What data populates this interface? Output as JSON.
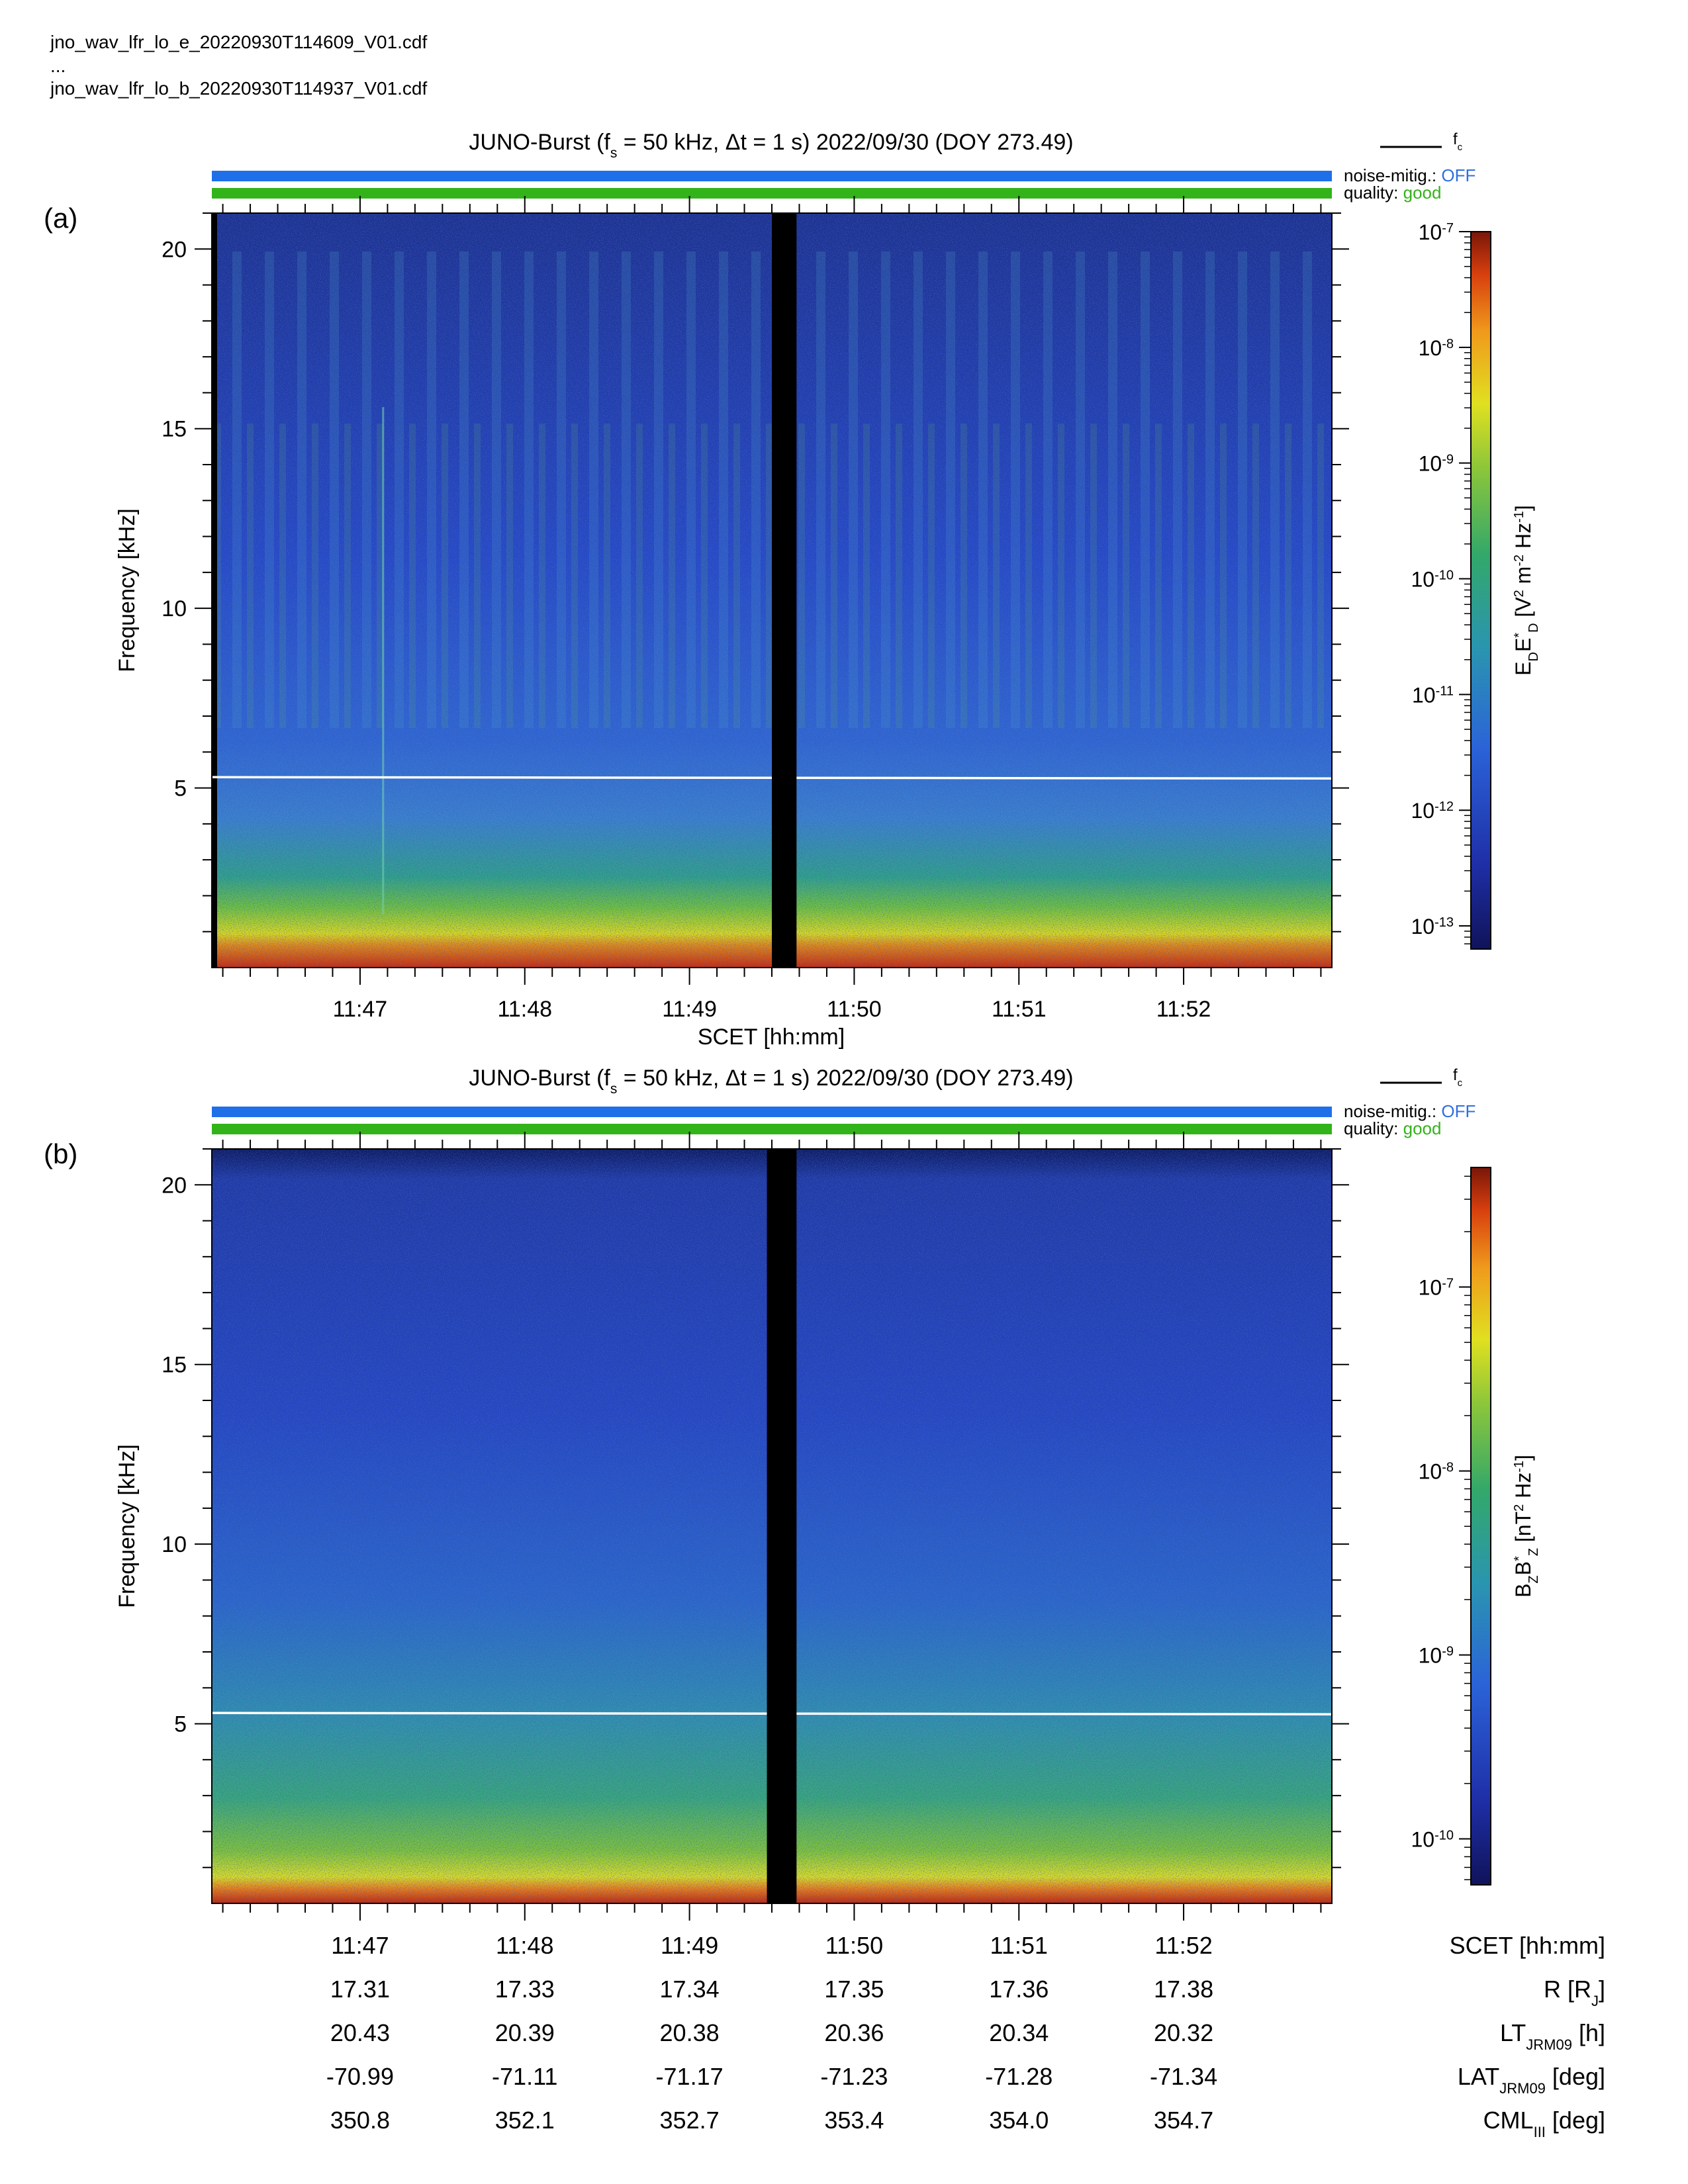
{
  "header": {
    "file_e": "jno_wav_lfr_lo_e_20220930T114609_V01.cdf",
    "ellipsis": "...",
    "file_b": "jno_wav_lfr_lo_b_20220930T114937_V01.cdf"
  },
  "colors": {
    "noise_bar": "#1f6fe8",
    "quality_bar": "#33b31a",
    "off_text": "#2f6fe0",
    "good_text": "#33b31a",
    "fc_line": "#ffffff",
    "gap": "#000000"
  },
  "chart_data": [
    {
      "type": "heatmap",
      "panel_label": "(a)",
      "title": {
        "prefix": "JUNO-Burst (f",
        "sub": "s",
        "middle": " = 50 kHz, Δt = 1 s)  2022/09/30 (DOY 273.49)"
      },
      "legend_fc": {
        "main": "f",
        "sub": "c"
      },
      "noise_mitig": {
        "label": "noise-mitig.:",
        "value": "OFF"
      },
      "quality": {
        "label": "quality:",
        "value": "good"
      },
      "ylabel": "Frequency [kHz]",
      "xlabel": "SCET [hh:mm]",
      "y_ticks": [
        "5",
        "10",
        "15",
        "20"
      ],
      "y_tick_values": [
        5,
        10,
        15,
        20
      ],
      "ylim": [
        0,
        21
      ],
      "x_ticks": [
        "11:47",
        "11:48",
        "11:49",
        "11:50",
        "11:51",
        "11:52"
      ],
      "x_tick_minutes": [
        47,
        48,
        49,
        50,
        51,
        52
      ],
      "xlim_minutes": [
        46.1,
        52.9
      ],
      "data_gap_minutes": [
        49.5,
        49.65
      ],
      "fc_line_khz": 5.3,
      "colorbar": {
        "label": {
          "a": "E",
          "a_sub": "D",
          "b": "E",
          "b_sup": "*",
          "b_sub": "D",
          "c": " [V",
          "c_sup": "2",
          "d": " m",
          "d_sup": "-2",
          "e": " Hz",
          "e_sup": "-1",
          "f": "]"
        },
        "tick_base": "10",
        "tick_exponents": [
          "-7",
          "-8",
          "-9",
          "-10",
          "-11",
          "-12",
          "-13"
        ],
        "tick_log_values": [
          -7,
          -8,
          -9,
          -10,
          -11,
          -12,
          -13
        ],
        "range_log": [
          -13.2,
          -7.0
        ]
      }
    },
    {
      "type": "heatmap",
      "panel_label": "(b)",
      "title": {
        "prefix": "JUNO-Burst (f",
        "sub": "s",
        "middle": " = 50 kHz, Δt = 1 s)  2022/09/30 (DOY 273.49)"
      },
      "legend_fc": {
        "main": "f",
        "sub": "c"
      },
      "noise_mitig": {
        "label": "noise-mitig.:",
        "value": "OFF"
      },
      "quality": {
        "label": "quality:",
        "value": "good"
      },
      "ylabel": "Frequency [kHz]",
      "y_ticks": [
        "5",
        "10",
        "15",
        "20"
      ],
      "y_tick_values": [
        5,
        10,
        15,
        20
      ],
      "ylim": [
        0,
        21
      ],
      "xlim_minutes": [
        46.1,
        52.9
      ],
      "data_gap_minutes": [
        49.47,
        49.65
      ],
      "fc_line_khz": 5.3,
      "colorbar": {
        "label": {
          "a": "B",
          "a_sub": "Z",
          "b": "B",
          "b_sup": "*",
          "b_sub": "Z",
          "c": " [nT",
          "c_sup": "2",
          "d": " Hz",
          "d_sup": "-1",
          "e": "]"
        },
        "tick_base": "10",
        "tick_exponents": [
          "-7",
          "-8",
          "-9",
          "-10"
        ],
        "tick_log_values": [
          -7,
          -8,
          -9,
          -10
        ],
        "range_log": [
          -10.25,
          -6.35
        ]
      }
    }
  ],
  "ephemeris": {
    "rows": [
      {
        "label_main": "SCET [hh:mm]",
        "label_sub": "",
        "label_tail": "",
        "values": [
          "11:47",
          "11:48",
          "11:49",
          "11:50",
          "11:51",
          "11:52"
        ]
      },
      {
        "label_main": "R [R",
        "label_sub": "J",
        "label_tail": "]",
        "values": [
          "17.31",
          "17.33",
          "17.34",
          "17.35",
          "17.36",
          "17.38"
        ]
      },
      {
        "label_main": "LT",
        "label_sub": "JRM09",
        "label_tail": " [h]",
        "values": [
          "20.43",
          "20.39",
          "20.38",
          "20.36",
          "20.34",
          "20.32"
        ]
      },
      {
        "label_main": "LAT",
        "label_sub": "JRM09",
        "label_tail": " [deg]",
        "values": [
          "-70.99",
          "-71.11",
          "-71.17",
          "-71.23",
          "-71.28",
          "-71.34"
        ]
      },
      {
        "label_main": "CML",
        "label_sub": "III",
        "label_tail": " [deg]",
        "values": [
          "350.8",
          "352.1",
          "352.7",
          "353.4",
          "354.0",
          "354.7"
        ]
      }
    ]
  }
}
